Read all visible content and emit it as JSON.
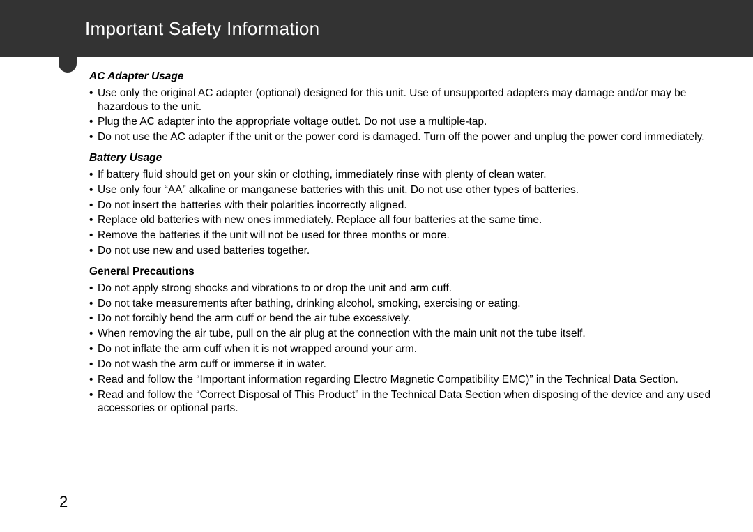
{
  "header": {
    "title": "Important Safety Information"
  },
  "sections": [
    {
      "title": "AC Adapter Usage",
      "style": "italic",
      "items": [
        "Use only the original AC adapter (optional) designed for this unit. Use of unsupported adapters may damage and/or may be hazardous to the unit.",
        "Plug the AC adapter into the appropriate voltage outlet. Do not use a multiple-tap.",
        "Do not use the AC adapter if the unit or the power cord is damaged. Turn off the power and unplug the power cord immediately."
      ]
    },
    {
      "title": "Battery Usage",
      "style": "italic",
      "items": [
        "If battery fluid should get on your skin or clothing, immediately rinse with plenty of clean water.",
        "Use only four “AA” alkaline or manganese batteries with this unit. Do not use other types of batteries.",
        "Do not insert the batteries with their polarities incorrectly aligned.",
        "Replace old batteries with new ones immediately. Replace all four batteries at the same time.",
        "Remove the batteries if the unit will not be used for three months or more.",
        "Do not use new and used batteries together."
      ]
    },
    {
      "title": "General Precautions",
      "style": "bold",
      "items": [
        "Do not apply strong shocks and vibrations to or drop the unit and arm cuff.",
        "Do not take measurements after bathing, drinking alcohol, smoking, exercising or eating.",
        "Do not forcibly bend the arm cuff or bend the air tube excessively.",
        "When removing the air tube, pull on the air plug at the connection with the main unit not the tube itself.",
        "Do not inflate the arm cuff when it is not wrapped around your arm.",
        "Do not wash the arm cuff or immerse it in water.",
        "Read and follow the “Important information regarding Electro Magnetic Compatibility EMC)” in the Technical Data Section.",
        "Read and follow the “Correct Disposal of This Product” in the Technical Data Section when disposing of the device and any used accessories or optional parts."
      ]
    }
  ],
  "page_number": "2",
  "colors": {
    "header_bg": "#333333",
    "header_text": "#ffffff",
    "body_text": "#000000",
    "page_bg": "#ffffff"
  }
}
